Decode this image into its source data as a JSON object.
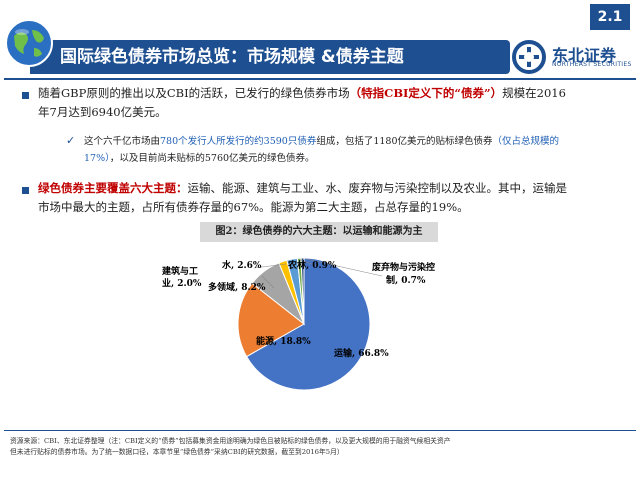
{
  "page_number": "2.1",
  "header": {
    "title": "国际绿色债券市场总览：市场规模 &债券主题",
    "logo_cn": "东北证券",
    "logo_en": "NORTHEAST SECURITIES"
  },
  "bullet1": {
    "pre": "随着GBP原则的推出以及CBI的活跃，已发行的绿色债券市场",
    "highlight": "（特指CBI定义下的“债券”）",
    "post_line1": "规模在2016",
    "line2": "年7月达到6940亿美元。"
  },
  "sub1": {
    "pre": "这个六千亿市场由",
    "blue1": "780个发行人所发行的约3590只债券",
    "mid": "组成，包括了1180亿美元的贴标绿色债券",
    "blue2": "（仅占总规模的",
    "blue3": "17%）",
    "post": "，以及目前尚未贴标的5760亿美元的绿色债券。"
  },
  "bullet2": {
    "highlight": "绿色债券主要覆盖六大主题：",
    "post_line1": "运输、能源、建筑与工业、水、废弃物与污染控制以及农业。其中，运输是",
    "line2": "市场中最大的主题，占所有债券存量的67%。能源为第二大主题，占总存量的19%。"
  },
  "figure_title": "图2：绿色债券的六大主题：以运输和能源为主",
  "chart_data": {
    "type": "pie",
    "title": "图2：绿色债券的六大主题：以运输和能源为主",
    "slices": [
      {
        "name": "运输",
        "label": "运输, 66.8%",
        "value": 66.8,
        "color": "#4472c4"
      },
      {
        "name": "能源",
        "label": "能源, 18.8%",
        "value": 18.8,
        "color": "#ed7d31"
      },
      {
        "name": "多领域",
        "label": "多领域, 8.2%",
        "value": 8.2,
        "color": "#a5a5a5"
      },
      {
        "name": "建筑与工业",
        "label_line1": "建筑与工",
        "label_line2": "业, 2.0%",
        "value": 2.0,
        "color": "#ffc000"
      },
      {
        "name": "水",
        "label": "水, 2.6%",
        "value": 2.6,
        "color": "#5b9bd5"
      },
      {
        "name": "农林",
        "label": "农林, 0.9%",
        "value": 0.9,
        "color": "#70ad47"
      },
      {
        "name": "废弃物与污染控制",
        "label_line1": "废弃物与污染控",
        "label_line2": "制, 0.7%",
        "value": 0.7,
        "color": "#264478"
      }
    ]
  },
  "footnote": {
    "line1": "资源来源：CBI、东北证券整理（注：CBI定义的“债券”包括募集资金用途明确为绿色且被贴标的绿色债券，以及更大规模的用于融资气候相关资产",
    "line2": "但未进行贴标的债券市场。为了统一数据口径，本章节里“绿色债券”采纳CBI的研究数据，截至到2016年5月）"
  }
}
